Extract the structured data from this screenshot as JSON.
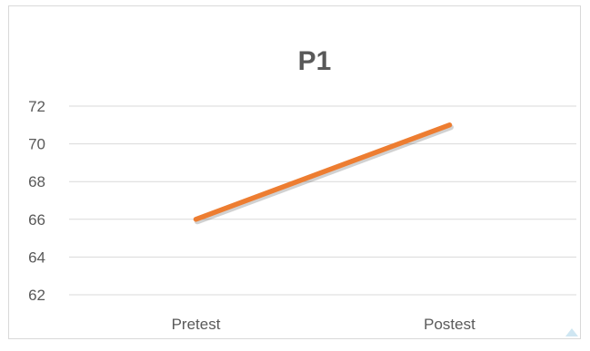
{
  "chart_data": {
    "type": "line",
    "title": "P1",
    "categories": [
      "Pretest",
      "Postest"
    ],
    "series": [
      {
        "values": [
          66,
          71
        ],
        "color": "#ED7D31"
      }
    ],
    "ylim": [
      62,
      72
    ],
    "yticks": [
      "62",
      "64",
      "66",
      "68",
      "70",
      "72"
    ],
    "grid": true,
    "gridColor": "#d9d9d9",
    "axisTextColor": "#595959",
    "titleColor": "#595959"
  }
}
